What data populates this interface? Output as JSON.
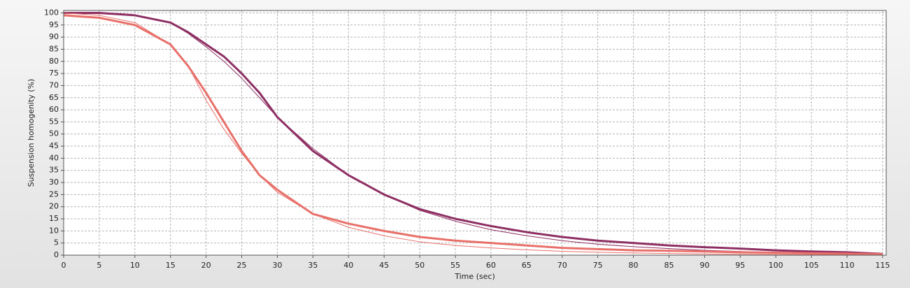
{
  "chart_data": {
    "type": "line",
    "xlabel": "Time (sec)",
    "ylabel": "Suspension homogenity (%)",
    "x": [
      0,
      5,
      10,
      15,
      17.5,
      20,
      22.5,
      25,
      27.5,
      30,
      35,
      40,
      45,
      50,
      55,
      60,
      65,
      70,
      75,
      80,
      85,
      90,
      95,
      100,
      105,
      110,
      115
    ],
    "series": [
      {
        "color": "#8e2f63",
        "width": 3,
        "values": [
          100,
          100,
          99,
          96,
          92,
          87,
          82,
          75,
          67,
          57,
          43,
          33,
          25,
          19,
          15,
          12,
          9.5,
          7.5,
          6,
          5,
          4,
          3.3,
          2.7,
          2,
          1.5,
          1.2,
          0.5
        ]
      },
      {
        "color": "#8e2f63",
        "width": 1,
        "values": [
          100,
          100,
          99,
          96,
          91.5,
          86,
          80,
          73,
          65,
          57,
          44,
          33,
          25,
          18.5,
          14,
          10.5,
          8,
          6,
          4.5,
          3.5,
          2.7,
          2,
          1.5,
          1.1,
          0.8,
          0.6,
          0.4
        ]
      },
      {
        "color": "#e8706a",
        "width": 3,
        "values": [
          99,
          98,
          95,
          87,
          78,
          67,
          55,
          43,
          33,
          27,
          17,
          13,
          10,
          7.5,
          6,
          5,
          4,
          3,
          2.5,
          2,
          1.8,
          1.5,
          1.2,
          1,
          0.8,
          0.6,
          0.4
        ]
      },
      {
        "color": "#e8706a",
        "width": 1,
        "values": [
          100,
          99,
          96,
          87,
          78,
          64,
          52,
          42,
          33,
          26,
          17,
          11.5,
          8,
          5.5,
          4,
          3,
          2.2,
          1.6,
          1.2,
          0.9,
          0.7,
          0.5,
          0.4,
          0.3,
          0.2,
          0.15,
          0.1
        ]
      }
    ],
    "xlim": [
      0,
      115.5
    ],
    "ylim": [
      0,
      101
    ],
    "xticks": [
      0,
      5,
      10,
      15,
      20,
      25,
      30,
      35,
      40,
      45,
      50,
      55,
      60,
      65,
      70,
      75,
      80,
      85,
      90,
      95,
      100,
      105,
      110,
      115
    ],
    "yticks": [
      0,
      5,
      10,
      15,
      20,
      25,
      30,
      35,
      40,
      45,
      50,
      55,
      60,
      65,
      70,
      75,
      80,
      85,
      90,
      95,
      100
    ],
    "grid": true
  }
}
